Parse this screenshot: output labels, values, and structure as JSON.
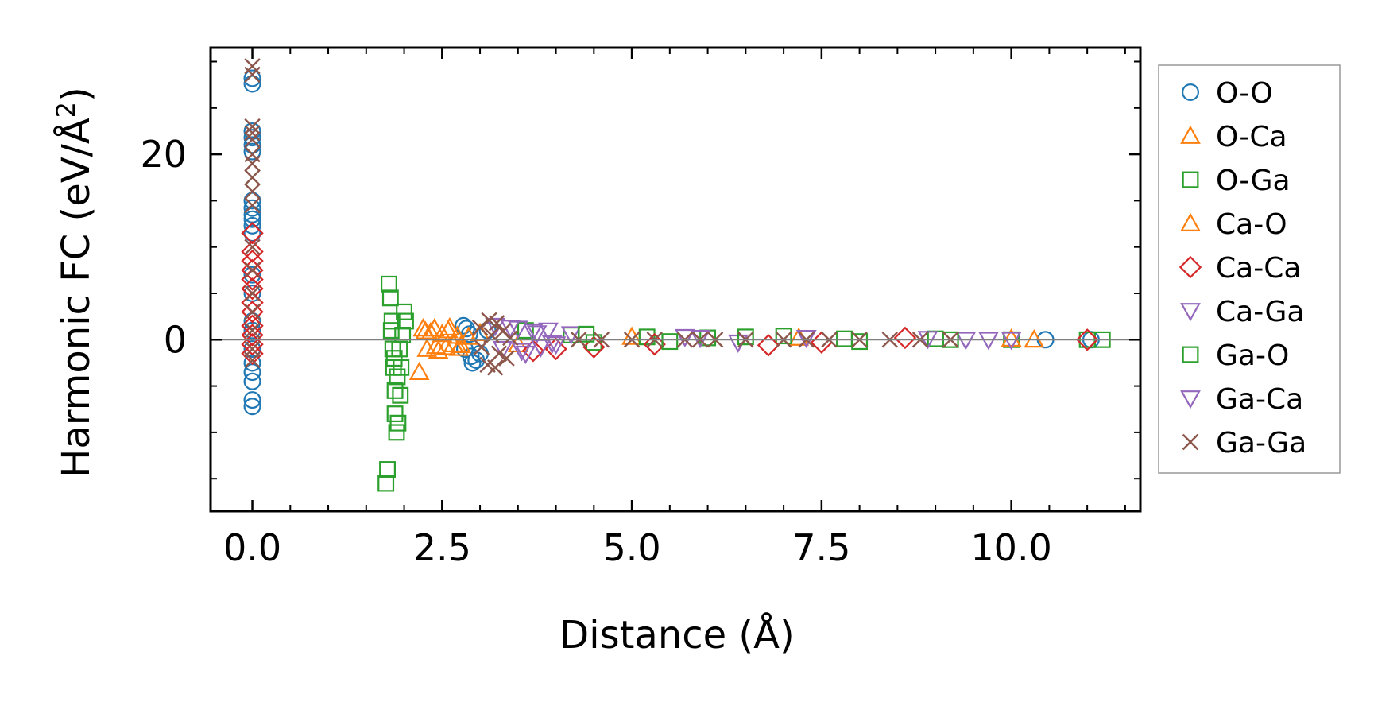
{
  "chart_data": {
    "type": "scatter",
    "xlabel": "Distance (Å)",
    "ylabel": {
      "main": "Harmonic FC (eV/Å",
      "sup": "2",
      "close": ")"
    },
    "xlim": [
      -0.55,
      11.7
    ],
    "ylim": [
      -18.5,
      31.5
    ],
    "xticks": [
      0.0,
      2.5,
      5.0,
      7.5,
      10.0
    ],
    "xtick_labels": [
      "0.0",
      "2.5",
      "5.0",
      "7.5",
      "10.0"
    ],
    "xminor": [
      0.5,
      1.0,
      1.5,
      2.0,
      3.0,
      3.5,
      4.0,
      4.5,
      5.5,
      6.0,
      6.5,
      7.0,
      8.0,
      8.5,
      9.0,
      9.5,
      10.5,
      11.0,
      11.5
    ],
    "yticks": [
      0,
      20
    ],
    "ytick_labels": [
      "0",
      "20"
    ],
    "yminor": [
      -15,
      -10,
      -5,
      5,
      10,
      15,
      25,
      30
    ],
    "zero_line": 0,
    "legend_position": "outside-right",
    "series": [
      {
        "name": "O-O",
        "marker": "circle",
        "color": "#1f77b4",
        "points": [
          [
            0,
            27.6
          ],
          [
            0,
            28.2
          ],
          [
            0,
            22.5
          ],
          [
            0,
            21.8
          ],
          [
            0,
            21
          ],
          [
            0,
            20.3
          ],
          [
            0,
            15
          ],
          [
            0,
            14.2
          ],
          [
            0,
            13.5
          ],
          [
            0,
            13
          ],
          [
            0,
            12.3
          ],
          [
            0,
            11.5
          ],
          [
            0,
            7
          ],
          [
            0,
            5
          ],
          [
            0,
            2
          ],
          [
            0,
            1
          ],
          [
            0,
            -1
          ],
          [
            0,
            -2.5
          ],
          [
            0,
            -3.5
          ],
          [
            0,
            -4.5
          ],
          [
            0,
            -6.5
          ],
          [
            0,
            -7.2
          ],
          [
            2.78,
            1.5
          ],
          [
            2.82,
            1.2
          ],
          [
            2.86,
            0.6
          ],
          [
            2.8,
            -1
          ],
          [
            2.88,
            -1.8
          ],
          [
            2.9,
            -2.5
          ],
          [
            2.95,
            -2.2
          ],
          [
            3.0,
            -1.5
          ],
          [
            3.1,
            1
          ],
          [
            10.45,
            0
          ],
          [
            11.05,
            0
          ]
        ]
      },
      {
        "name": "O-Ca",
        "marker": "triangle",
        "color": "#ff7f0e",
        "points": [
          [
            2.2,
            -3.5
          ],
          [
            2.25,
            1.2
          ],
          [
            2.3,
            -1
          ],
          [
            2.35,
            0.8
          ],
          [
            2.4,
            1.2
          ],
          [
            2.45,
            -1.2
          ],
          [
            2.5,
            0.6
          ],
          [
            2.55,
            -0.8
          ],
          [
            2.6,
            1.3
          ],
          [
            2.65,
            -0.5
          ],
          [
            2.7,
            0.4
          ],
          [
            2.75,
            -0.6
          ],
          [
            2.85,
            0.3
          ],
          [
            3.0,
            0.7
          ],
          [
            3.5,
            -0.5
          ],
          [
            5.0,
            0.3
          ],
          [
            7.2,
            0.2
          ],
          [
            10.3,
            0
          ]
        ]
      },
      {
        "name": "O-Ga",
        "marker": "square",
        "color": "#2ca02c",
        "points": [
          [
            1.8,
            6
          ],
          [
            1.82,
            4.5
          ],
          [
            1.84,
            2
          ],
          [
            1.85,
            -1
          ],
          [
            1.86,
            -3
          ],
          [
            1.88,
            -5.5
          ],
          [
            1.88,
            -8
          ],
          [
            1.9,
            -10
          ],
          [
            1.92,
            -9
          ],
          [
            1.95,
            -6
          ],
          [
            1.96,
            -3
          ],
          [
            1.98,
            0.5
          ],
          [
            2.0,
            3
          ],
          [
            2.02,
            2
          ],
          [
            1.76,
            -15.5
          ],
          [
            1.78,
            -14
          ],
          [
            3.6,
            1
          ],
          [
            4.2,
            0.5
          ],
          [
            4.5,
            -0.3
          ],
          [
            5.2,
            0.3
          ],
          [
            6.0,
            0.2
          ],
          [
            7.0,
            0.4
          ],
          [
            8.0,
            -0.2
          ],
          [
            9.0,
            0.1
          ],
          [
            10.0,
            0
          ],
          [
            11.0,
            0
          ],
          [
            11.2,
            0
          ]
        ]
      },
      {
        "name": "Ca-O",
        "marker": "triangle",
        "color": "#ff7f0e",
        "points": [
          [
            2.28,
            0.9
          ],
          [
            2.42,
            -0.7
          ],
          [
            2.58,
            1
          ],
          [
            2.72,
            -0.9
          ],
          [
            10.0,
            0.1
          ]
        ]
      },
      {
        "name": "Ca-Ca",
        "marker": "diamond",
        "color": "#d62728",
        "points": [
          [
            0,
            11.5
          ],
          [
            0,
            9.5
          ],
          [
            0,
            8.5
          ],
          [
            0,
            7.5
          ],
          [
            0,
            6.5
          ],
          [
            0,
            5.5
          ],
          [
            0,
            4
          ],
          [
            0,
            3
          ],
          [
            0,
            1.5
          ],
          [
            0,
            0.5
          ],
          [
            0,
            -0.5
          ],
          [
            0,
            -1.5
          ],
          [
            3.7,
            -1.2
          ],
          [
            4.0,
            -1
          ],
          [
            4.5,
            -0.8
          ],
          [
            5.3,
            -0.5
          ],
          [
            6.8,
            -0.6
          ],
          [
            7.5,
            -0.3
          ],
          [
            8.6,
            0.2
          ],
          [
            11.0,
            0
          ]
        ]
      },
      {
        "name": "Ca-Ga",
        "marker": "triangle-down",
        "color": "#9467bd",
        "points": [
          [
            3.2,
            1.5
          ],
          [
            3.3,
            -1
          ],
          [
            3.5,
            1.2
          ],
          [
            3.6,
            -1.5
          ],
          [
            3.7,
            0.9
          ],
          [
            3.8,
            -0.8
          ],
          [
            3.9,
            1
          ],
          [
            4.0,
            -0.5
          ],
          [
            4.2,
            0.6
          ],
          [
            5.7,
            0.3
          ],
          [
            6.4,
            -0.3
          ],
          [
            7.3,
            0.2
          ],
          [
            9.4,
            0
          ],
          [
            9.7,
            0
          ],
          [
            10.0,
            0
          ]
        ]
      },
      {
        "name": "Ga-O",
        "marker": "square",
        "color": "#2ca02c",
        "points": [
          [
            1.83,
            1
          ],
          [
            1.87,
            -2
          ],
          [
            1.91,
            -4
          ],
          [
            1.94,
            -1
          ],
          [
            4.4,
            0.6
          ],
          [
            5.5,
            -0.2
          ],
          [
            6.5,
            0.3
          ],
          [
            7.8,
            0.1
          ],
          [
            9.2,
            0
          ]
        ]
      },
      {
        "name": "Ga-Ca",
        "marker": "triangle-down",
        "color": "#9467bd",
        "points": [
          [
            3.4,
            1.3
          ],
          [
            3.55,
            -1.2
          ],
          [
            3.75,
            0.7
          ],
          [
            3.95,
            -0.4
          ],
          [
            5.9,
            0.2
          ],
          [
            8.9,
            0.1
          ]
        ]
      },
      {
        "name": "Ga-Ga",
        "marker": "x",
        "color": "#8c564b",
        "points": [
          [
            0,
            29.5
          ],
          [
            0,
            28.6
          ],
          [
            0,
            23
          ],
          [
            0,
            22.3
          ],
          [
            0,
            21.6
          ],
          [
            0,
            20
          ],
          [
            0,
            19
          ],
          [
            0,
            17.5
          ],
          [
            0,
            16
          ],
          [
            0,
            14.5
          ],
          [
            0,
            10
          ],
          [
            0,
            7.5
          ],
          [
            0,
            5
          ],
          [
            0,
            3
          ],
          [
            0,
            1
          ],
          [
            0,
            -1
          ],
          [
            0,
            -2.2
          ],
          [
            3.0,
            1.3
          ],
          [
            3.02,
            -0.8
          ],
          [
            3.1,
            -2.7
          ],
          [
            3.12,
            2.1
          ],
          [
            3.15,
            0.5
          ],
          [
            3.2,
            -3
          ],
          [
            3.22,
            1.8
          ],
          [
            3.25,
            -1.5
          ],
          [
            3.3,
            0.9
          ],
          [
            3.35,
            -2
          ],
          [
            3.4,
            0.2
          ],
          [
            4.3,
            0
          ],
          [
            4.6,
            0
          ],
          [
            5.0,
            0
          ],
          [
            5.3,
            0
          ],
          [
            5.7,
            0
          ],
          [
            5.9,
            0
          ],
          [
            6.1,
            0
          ],
          [
            6.5,
            0
          ],
          [
            7.0,
            0
          ],
          [
            7.3,
            0
          ],
          [
            7.6,
            0
          ],
          [
            8.0,
            0
          ],
          [
            8.4,
            0
          ],
          [
            8.8,
            0
          ],
          [
            9.2,
            0
          ]
        ]
      }
    ]
  }
}
